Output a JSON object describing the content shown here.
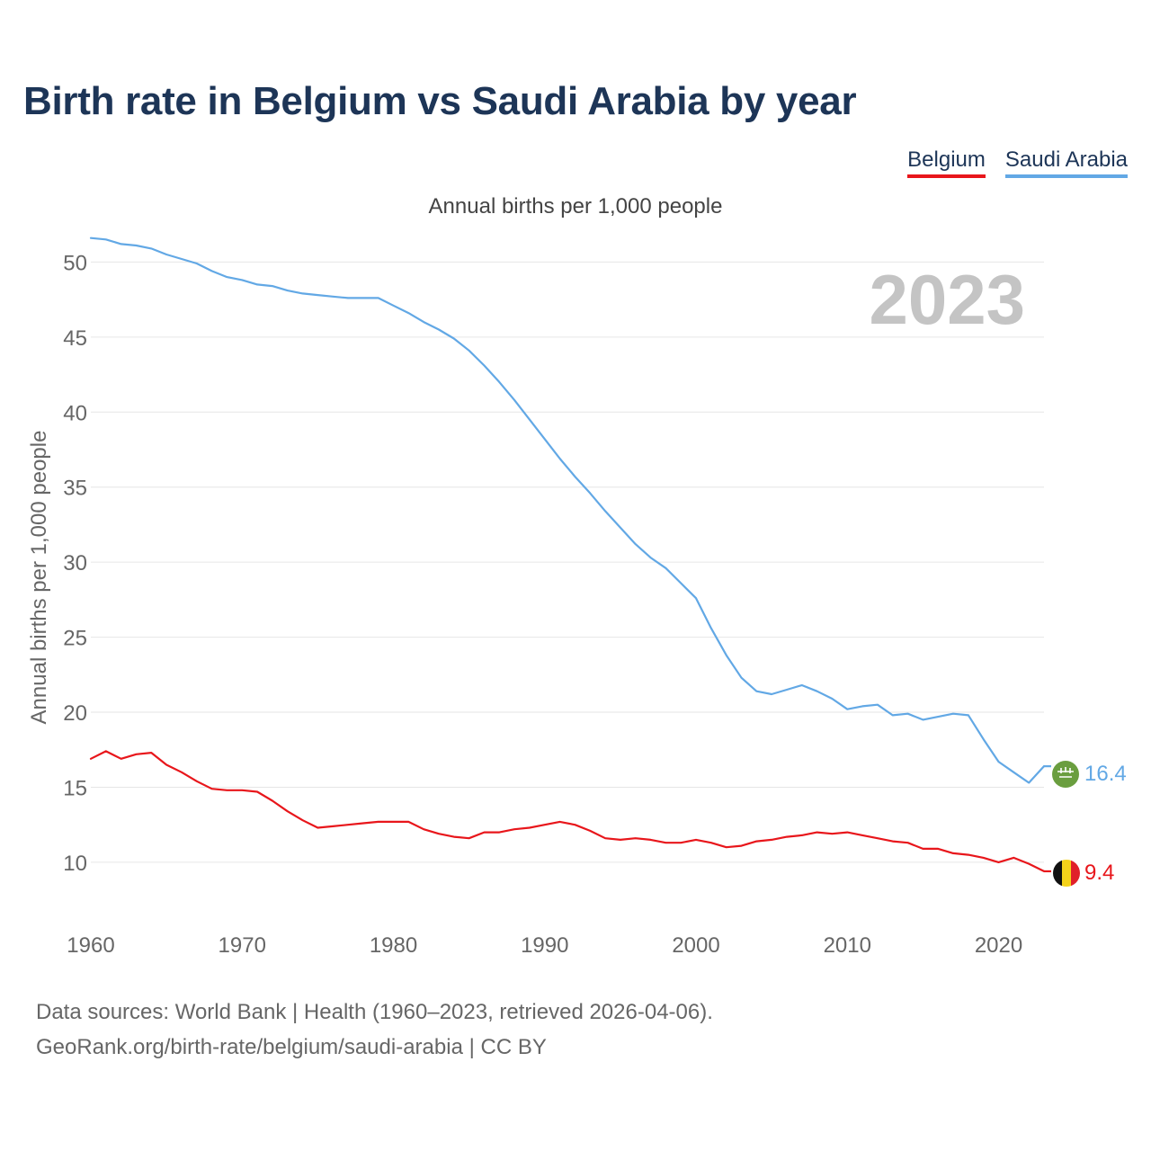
{
  "title": "Birth rate in Belgium vs Saudi Arabia by year",
  "subtitle": "Annual births per 1,000 people",
  "legend": [
    {
      "label": "Belgium",
      "color": "#e8161b"
    },
    {
      "label": "Saudi Arabia",
      "color": "#62a8e5"
    }
  ],
  "year_watermark": "2023",
  "footer": {
    "line1": "Data sources: World Bank | Health (1960–2023, retrieved 2026-04-06).",
    "line2": "GeoRank.org/birth-rate/belgium/saudi-arabia | CC BY"
  },
  "chart_data": {
    "type": "line",
    "title": "Birth rate in Belgium vs Saudi Arabia by year",
    "xlabel": "",
    "ylabel": "Annual births per 1,000 people",
    "xlim": [
      1960,
      2023
    ],
    "ylim": [
      7,
      52
    ],
    "x_ticks": [
      1960,
      1970,
      1980,
      1990,
      2000,
      2010,
      2020
    ],
    "y_ticks": [
      10,
      15,
      20,
      25,
      30,
      35,
      40,
      45,
      50
    ],
    "grid": true,
    "x": [
      1960,
      1961,
      1962,
      1963,
      1964,
      1965,
      1966,
      1967,
      1968,
      1969,
      1970,
      1971,
      1972,
      1973,
      1974,
      1975,
      1976,
      1977,
      1978,
      1979,
      1980,
      1981,
      1982,
      1983,
      1984,
      1985,
      1986,
      1987,
      1988,
      1989,
      1990,
      1991,
      1992,
      1993,
      1994,
      1995,
      1996,
      1997,
      1998,
      1999,
      2000,
      2001,
      2002,
      2003,
      2004,
      2005,
      2006,
      2007,
      2008,
      2009,
      2010,
      2011,
      2012,
      2013,
      2014,
      2015,
      2016,
      2017,
      2018,
      2019,
      2020,
      2021,
      2022,
      2023
    ],
    "series": [
      {
        "name": "Belgium",
        "color": "#e8161b",
        "end_label": "9.4",
        "values": [
          16.9,
          17.4,
          16.9,
          17.2,
          17.3,
          16.5,
          16.0,
          15.4,
          14.9,
          14.8,
          14.8,
          14.7,
          14.1,
          13.4,
          12.8,
          12.3,
          12.4,
          12.5,
          12.6,
          12.7,
          12.7,
          12.7,
          12.2,
          11.9,
          11.7,
          11.6,
          12.0,
          12.0,
          12.2,
          12.3,
          12.5,
          12.7,
          12.5,
          12.1,
          11.6,
          11.5,
          11.6,
          11.5,
          11.3,
          11.3,
          11.5,
          11.3,
          11.0,
          11.1,
          11.4,
          11.5,
          11.7,
          11.8,
          12.0,
          11.9,
          12.0,
          11.8,
          11.6,
          11.4,
          11.3,
          10.9,
          10.9,
          10.6,
          10.5,
          10.3,
          10.0,
          10.3,
          9.9,
          9.4
        ]
      },
      {
        "name": "Saudi Arabia",
        "color": "#62a8e5",
        "end_label": "16.4",
        "values": [
          51.6,
          51.5,
          51.2,
          51.1,
          50.9,
          50.5,
          50.2,
          49.9,
          49.4,
          49.0,
          48.8,
          48.5,
          48.4,
          48.1,
          47.9,
          47.8,
          47.7,
          47.6,
          47.6,
          47.6,
          47.1,
          46.6,
          46.0,
          45.5,
          44.9,
          44.1,
          43.1,
          42.0,
          40.8,
          39.5,
          38.2,
          36.9,
          35.7,
          34.6,
          33.4,
          32.3,
          31.2,
          30.3,
          29.6,
          28.6,
          27.6,
          25.6,
          23.8,
          22.3,
          21.4,
          21.2,
          21.5,
          21.8,
          21.4,
          20.9,
          20.2,
          20.4,
          20.5,
          19.8,
          19.9,
          19.5,
          19.7,
          19.9,
          19.8,
          18.2,
          16.7,
          16.0,
          15.3,
          16.4
        ]
      }
    ]
  }
}
